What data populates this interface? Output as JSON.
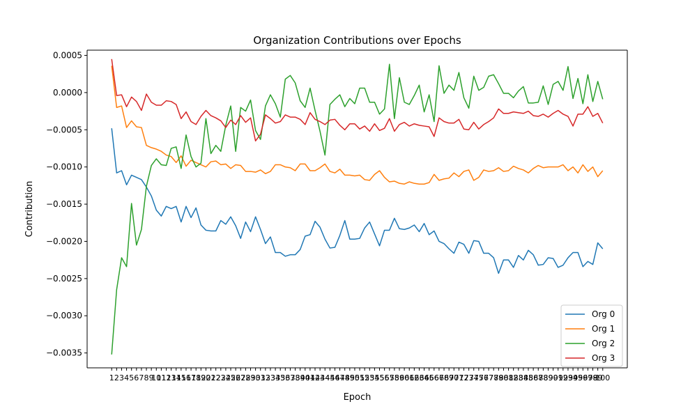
{
  "chart_data": {
    "type": "line",
    "title": "Organization Contributions over Epochs",
    "xlabel": "Epoch",
    "ylabel": "Contribution",
    "x": [
      1,
      2,
      3,
      4,
      5,
      6,
      7,
      8,
      9,
      10,
      11,
      12,
      13,
      14,
      15,
      16,
      17,
      18,
      19,
      20,
      21,
      22,
      23,
      24,
      25,
      26,
      27,
      28,
      29,
      30,
      31,
      32,
      33,
      34,
      35,
      36,
      37,
      38,
      39,
      40,
      41,
      42,
      43,
      44,
      45,
      46,
      47,
      48,
      49,
      50,
      51,
      52,
      53,
      54,
      55,
      56,
      57,
      58,
      59,
      60,
      61,
      62,
      63,
      64,
      65,
      66,
      67,
      68,
      69,
      70,
      71,
      72,
      73,
      74,
      75,
      76,
      77,
      78,
      79,
      80,
      81,
      82,
      83,
      84,
      85,
      86,
      87,
      88,
      89,
      90,
      91,
      92,
      93,
      94,
      95,
      96,
      97,
      98,
      99,
      100
    ],
    "xticks": [
      "1",
      "2",
      "3",
      "4",
      "5",
      "6",
      "7",
      "8",
      "9",
      "10",
      "11",
      "12",
      "13",
      "14",
      "15",
      "16",
      "17",
      "18",
      "19",
      "20",
      "21",
      "22",
      "23",
      "24",
      "25",
      "26",
      "27",
      "28",
      "29",
      "30",
      "31",
      "32",
      "33",
      "34",
      "35",
      "36",
      "37",
      "38",
      "39",
      "40",
      "41",
      "42",
      "43",
      "44",
      "45",
      "46",
      "47",
      "48",
      "49",
      "50",
      "51",
      "52",
      "53",
      "54",
      "55",
      "56",
      "57",
      "58",
      "59",
      "60",
      "61",
      "62",
      "63",
      "64",
      "65",
      "66",
      "67",
      "68",
      "69",
      "70",
      "71",
      "72",
      "73",
      "74",
      "75",
      "76",
      "77",
      "78",
      "79",
      "80",
      "81",
      "82",
      "83",
      "84",
      "85",
      "86",
      "87",
      "88",
      "89",
      "90",
      "91",
      "92",
      "93",
      "94",
      "95",
      "96",
      "97",
      "98",
      "99",
      "100"
    ],
    "xlim": [
      -3.95,
      104.95
    ],
    "ylim": [
      -0.0037,
      0.00057
    ],
    "yticks": [
      0.0005,
      0.0,
      -0.0005,
      -0.001,
      -0.0015,
      -0.002,
      -0.0025,
      -0.003,
      -0.0035
    ],
    "ytick_labels": [
      "0.0005",
      "0.0000",
      "−0.0005",
      "−0.0010",
      "−0.0015",
      "−0.0020",
      "−0.0025",
      "−0.0030",
      "−0.0035"
    ],
    "grid": false,
    "legend": "lower-right",
    "series": [
      {
        "name": "Org 0",
        "color": "#1f77b4",
        "values": [
          -0.00048,
          -0.00108,
          -0.00105,
          -0.00124,
          -0.00111,
          -0.00114,
          -0.00117,
          -0.00127,
          -0.00139,
          -0.00158,
          -0.00166,
          -0.00153,
          -0.00156,
          -0.00153,
          -0.00174,
          -0.00153,
          -0.00168,
          -0.00155,
          -0.00178,
          -0.00185,
          -0.00186,
          -0.00186,
          -0.00172,
          -0.00177,
          -0.00167,
          -0.00179,
          -0.00196,
          -0.00174,
          -0.00187,
          -0.00167,
          -0.00184,
          -0.00203,
          -0.00194,
          -0.00215,
          -0.00215,
          -0.0022,
          -0.00218,
          -0.00218,
          -0.00211,
          -0.00193,
          -0.00191,
          -0.00173,
          -0.00181,
          -0.00197,
          -0.00209,
          -0.00208,
          -0.00192,
          -0.00172,
          -0.00197,
          -0.00197,
          -0.00196,
          -0.00182,
          -0.00174,
          -0.0019,
          -0.00206,
          -0.00185,
          -0.00185,
          -0.00169,
          -0.00183,
          -0.00184,
          -0.00182,
          -0.00178,
          -0.00187,
          -0.00176,
          -0.00191,
          -0.00186,
          -0.002,
          -0.00203,
          -0.0021,
          -0.00216,
          -0.00201,
          -0.00204,
          -0.00216,
          -0.00199,
          -0.002,
          -0.00216,
          -0.00216,
          -0.00222,
          -0.00243,
          -0.00225,
          -0.00225,
          -0.00235,
          -0.00219,
          -0.00225,
          -0.00212,
          -0.00218,
          -0.00232,
          -0.00231,
          -0.00222,
          -0.00223,
          -0.00235,
          -0.00232,
          -0.00222,
          -0.00215,
          -0.00215,
          -0.00234,
          -0.00227,
          -0.00231,
          -0.00202,
          -0.0021
        ]
      },
      {
        "name": "Org 1",
        "color": "#ff7f0e",
        "values": [
          0.00036,
          -0.0002,
          -0.00018,
          -0.00047,
          -0.00038,
          -0.00046,
          -0.00047,
          -0.00071,
          -0.00074,
          -0.00076,
          -0.00079,
          -0.00084,
          -0.00086,
          -0.00094,
          -0.00085,
          -0.00099,
          -0.00091,
          -0.00094,
          -0.00097,
          -0.001,
          -0.00093,
          -0.00092,
          -0.00097,
          -0.00096,
          -0.00102,
          -0.00097,
          -0.00098,
          -0.00106,
          -0.00106,
          -0.00107,
          -0.00104,
          -0.00109,
          -0.00106,
          -0.00097,
          -0.00097,
          -0.001,
          -0.00101,
          -0.00105,
          -0.00096,
          -0.00096,
          -0.00105,
          -0.00105,
          -0.00101,
          -0.00096,
          -0.00106,
          -0.00108,
          -0.00103,
          -0.00111,
          -0.00111,
          -0.00112,
          -0.00111,
          -0.00117,
          -0.00118,
          -0.0011,
          -0.00105,
          -0.00114,
          -0.0012,
          -0.00119,
          -0.00122,
          -0.00123,
          -0.0012,
          -0.00122,
          -0.00123,
          -0.00123,
          -0.00121,
          -0.0011,
          -0.00118,
          -0.00116,
          -0.00115,
          -0.00108,
          -0.00113,
          -0.00106,
          -0.00104,
          -0.00118,
          -0.00114,
          -0.00104,
          -0.00106,
          -0.00105,
          -0.00101,
          -0.00106,
          -0.00105,
          -0.00099,
          -0.00102,
          -0.00104,
          -0.00108,
          -0.00102,
          -0.00098,
          -0.00101,
          -0.001,
          -0.001,
          -0.001,
          -0.00097,
          -0.00105,
          -0.001,
          -0.00108,
          -0.00097,
          -0.00106,
          -0.001,
          -0.00113,
          -0.00105
        ]
      },
      {
        "name": "Org 2",
        "color": "#2ca02c",
        "values": [
          -0.00352,
          -0.00265,
          -0.00222,
          -0.00234,
          -0.00149,
          -0.00205,
          -0.00184,
          -0.00126,
          -0.00098,
          -0.00089,
          -0.00097,
          -0.00098,
          -0.00075,
          -0.00073,
          -0.00102,
          -0.00057,
          -0.00086,
          -0.001,
          -0.00095,
          -0.00035,
          -0.00082,
          -0.00071,
          -0.00079,
          -0.00044,
          -0.00018,
          -0.00079,
          -0.0002,
          -0.00025,
          -0.0001,
          -0.00051,
          -0.00063,
          -0.00018,
          -3e-05,
          -0.00015,
          -0.00033,
          0.00018,
          0.00023,
          0.00013,
          -0.00011,
          -0.0002,
          6e-05,
          -0.00024,
          -0.00052,
          -0.00084,
          -0.00016,
          -9e-05,
          -3e-05,
          -0.00019,
          -8e-05,
          -0.00015,
          6e-05,
          6e-05,
          -0.00013,
          -0.00013,
          -0.00029,
          -0.00022,
          0.00038,
          -0.00035,
          0.0002,
          -0.00013,
          -0.00016,
          -4e-05,
          0.0001,
          -0.00026,
          -3e-05,
          -0.00039,
          0.00036,
          -1e-05,
          0.0001,
          3e-05,
          0.00027,
          -7e-05,
          -0.00021,
          0.00022,
          3e-05,
          7e-05,
          0.00022,
          0.00024,
          0.00012,
          -1e-05,
          -1e-05,
          -7e-05,
          2e-05,
          8e-05,
          -0.00014,
          -0.00014,
          -0.00013,
          9e-05,
          -0.00016,
          0.00011,
          0.00015,
          3e-05,
          0.00035,
          -8e-05,
          0.00019,
          -0.00015,
          0.00024,
          -0.00012,
          0.00015,
          -9e-05
        ]
      },
      {
        "name": "Org 3",
        "color": "#d62728",
        "values": [
          0.00045,
          -4e-05,
          -3e-05,
          -0.00019,
          -6e-05,
          -0.00012,
          -0.00024,
          -2e-05,
          -0.00013,
          -0.00017,
          -0.00017,
          -0.00011,
          -0.00012,
          -0.00016,
          -0.00035,
          -0.00026,
          -0.00039,
          -0.00043,
          -0.00032,
          -0.00024,
          -0.00031,
          -0.00034,
          -0.00038,
          -0.00047,
          -0.00037,
          -0.00043,
          -0.00031,
          -0.0004,
          -0.00034,
          -0.00065,
          -0.00056,
          -0.0003,
          -0.00035,
          -0.00041,
          -0.00039,
          -0.0003,
          -0.00033,
          -0.00033,
          -0.00036,
          -0.00043,
          -0.00027,
          -0.00036,
          -0.00039,
          -0.00043,
          -0.00037,
          -0.00036,
          -0.00044,
          -0.0005,
          -0.00042,
          -0.00042,
          -0.00049,
          -0.00045,
          -0.00052,
          -0.00042,
          -0.00051,
          -0.00048,
          -0.00035,
          -0.00052,
          -0.00043,
          -0.0004,
          -0.00045,
          -0.00042,
          -0.00044,
          -0.00045,
          -0.00046,
          -0.00059,
          -0.00034,
          -0.00039,
          -0.00041,
          -0.00041,
          -0.00036,
          -0.00049,
          -0.0005,
          -0.0004,
          -0.00049,
          -0.00043,
          -0.00039,
          -0.00034,
          -0.00022,
          -0.00028,
          -0.00028,
          -0.00026,
          -0.00027,
          -0.00028,
          -0.00025,
          -0.00031,
          -0.00032,
          -0.00029,
          -0.00033,
          -0.00028,
          -0.00024,
          -0.00029,
          -0.00032,
          -0.00045,
          -0.00029,
          -0.00029,
          -0.00019,
          -0.00032,
          -0.00028,
          -0.00041
        ]
      }
    ]
  }
}
